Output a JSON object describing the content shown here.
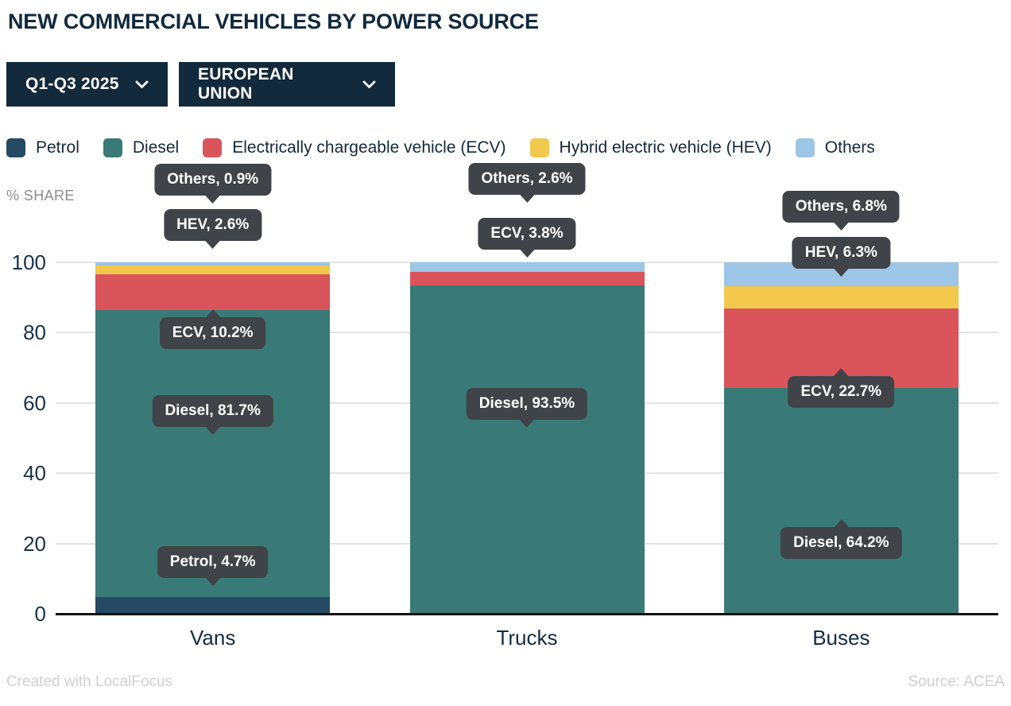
{
  "header": {
    "title": "NEW COMMERCIAL VEHICLES BY POWER SOURCE"
  },
  "filters": {
    "period": {
      "label": "Q1-Q3 2025"
    },
    "region": {
      "label": "EUROPEAN UNION"
    }
  },
  "chart_data": {
    "type": "bar",
    "stacked": true,
    "title": "NEW COMMERCIAL VEHICLES BY POWER SOURCE",
    "ylabel": "% SHARE",
    "ylim": [
      0,
      100
    ],
    "yticks": [
      0,
      20,
      40,
      60,
      80,
      100
    ],
    "grid": true,
    "legend_position": "top",
    "categories": [
      "Vans",
      "Trucks",
      "Buses"
    ],
    "series": [
      {
        "name": "Petrol",
        "color": "#264a63",
        "values": [
          4.7,
          0,
          0
        ]
      },
      {
        "name": "Diesel",
        "color": "#3a7a76",
        "values": [
          81.7,
          93.5,
          64.2
        ]
      },
      {
        "name": "Electrically chargeable vehicle (ECV)",
        "color": "#d9555b",
        "values": [
          10.2,
          3.8,
          22.7
        ]
      },
      {
        "name": "Hybrid electric vehicle (HEV)",
        "color": "#f2c84d",
        "values": [
          2.6,
          0,
          6.3
        ]
      },
      {
        "name": "Others",
        "color": "#9cc5e6",
        "values": [
          0.9,
          2.6,
          6.8
        ]
      }
    ],
    "annotations": [
      {
        "category": "Vans",
        "series": "Others",
        "label": "Others, 0.9%",
        "arrow": "down"
      },
      {
        "category": "Vans",
        "series": "Hybrid electric vehicle (HEV)",
        "label": "HEV, 2.6%",
        "arrow": "down"
      },
      {
        "category": "Vans",
        "series": "Electrically chargeable vehicle (ECV)",
        "label": "ECV, 10.2%",
        "arrow": "up"
      },
      {
        "category": "Vans",
        "series": "Diesel",
        "label": "Diesel, 81.7%",
        "arrow": "down"
      },
      {
        "category": "Vans",
        "series": "Petrol",
        "label": "Petrol, 4.7%",
        "arrow": "down"
      },
      {
        "category": "Trucks",
        "series": "Others",
        "label": "Others, 2.6%",
        "arrow": "down"
      },
      {
        "category": "Trucks",
        "series": "Electrically chargeable vehicle (ECV)",
        "label": "ECV, 3.8%",
        "arrow": "down"
      },
      {
        "category": "Trucks",
        "series": "Diesel",
        "label": "Diesel, 93.5%",
        "arrow": "down"
      },
      {
        "category": "Buses",
        "series": "Others",
        "label": "Others, 6.8%",
        "arrow": "down"
      },
      {
        "category": "Buses",
        "series": "Hybrid electric vehicle (HEV)",
        "label": "HEV, 6.3%",
        "arrow": "down"
      },
      {
        "category": "Buses",
        "series": "Electrically chargeable vehicle (ECV)",
        "label": "ECV, 22.7%",
        "arrow": "up"
      },
      {
        "category": "Buses",
        "series": "Diesel",
        "label": "Diesel, 64.2%",
        "arrow": "up"
      }
    ]
  },
  "footer": {
    "left": "Created with LocalFocus",
    "right": "Source: ACEA"
  }
}
